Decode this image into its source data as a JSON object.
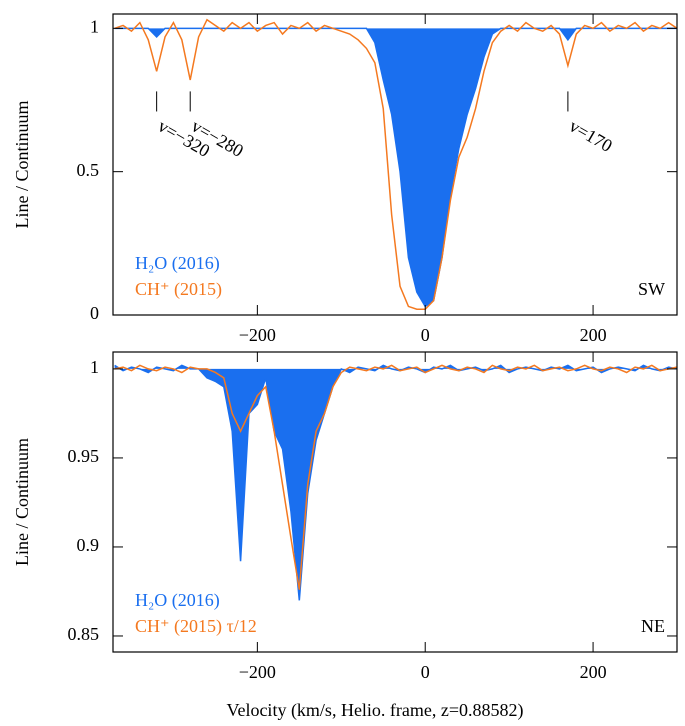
{
  "chart_data": [
    {
      "type": "line",
      "ylabel": "Line / Continuum",
      "panel_label": "SW",
      "xlim": [
        -372,
        300
      ],
      "ylim": [
        0,
        1.05
      ],
      "xticks": [
        {
          "value": -200,
          "label": "−200"
        },
        0,
        200
      ],
      "yticks": [
        0,
        0.5,
        1
      ],
      "x": [
        -370,
        -360,
        -350,
        -340,
        -330,
        -320,
        -310,
        -300,
        -290,
        -280,
        -270,
        -260,
        -250,
        -240,
        -230,
        -220,
        -210,
        -200,
        -190,
        -180,
        -170,
        -160,
        -150,
        -140,
        -130,
        -120,
        -110,
        -100,
        -90,
        -80,
        -70,
        -60,
        -50,
        -40,
        -30,
        -20,
        -10,
        0,
        10,
        20,
        30,
        40,
        50,
        60,
        70,
        80,
        90,
        100,
        110,
        120,
        130,
        140,
        150,
        160,
        170,
        180,
        190,
        200,
        210,
        220,
        230,
        240,
        250,
        260,
        270,
        280,
        290,
        300
      ],
      "series": [
        {
          "name": "H₂O (2016)",
          "color": "#1a6fef",
          "fill_to": 1,
          "values": [
            1,
            1,
            1,
            1,
            1,
            0.97,
            1,
            1,
            1,
            1,
            1,
            1,
            1,
            1,
            1,
            1,
            1,
            1,
            1,
            1,
            1,
            1,
            1,
            1,
            1,
            1,
            1,
            1,
            1,
            1,
            1,
            0.95,
            0.82,
            0.7,
            0.5,
            0.2,
            0.08,
            0.03,
            0.05,
            0.2,
            0.42,
            0.58,
            0.7,
            0.79,
            0.9,
            0.98,
            1,
            1,
            1,
            1,
            1,
            1,
            1,
            1,
            0.96,
            1,
            1,
            1,
            1,
            1,
            1,
            1,
            1,
            1,
            1,
            1,
            1,
            1
          ]
        },
        {
          "name": "CH⁺ (2015)",
          "color": "#f47920",
          "values": [
            1.0,
            1.01,
            0.99,
            1.02,
            0.96,
            0.85,
            0.97,
            1.02,
            0.96,
            0.82,
            0.97,
            1.03,
            1.01,
            0.99,
            1.02,
            1.0,
            1.02,
            0.99,
            1.01,
            1.02,
            0.98,
            1.01,
            1.0,
            1.02,
            0.99,
            1.01,
            1.0,
            0.99,
            0.98,
            0.96,
            0.93,
            0.88,
            0.72,
            0.35,
            0.1,
            0.03,
            0.02,
            0.02,
            0.05,
            0.2,
            0.4,
            0.55,
            0.62,
            0.72,
            0.85,
            0.95,
            0.99,
            1.01,
            0.99,
            1.02,
            1.0,
            0.99,
            1.01,
            0.98,
            0.87,
            0.98,
            1.01,
            1.0,
            1.02,
            0.99,
            1.01,
            1.0,
            1.02,
            0.99,
            1.01,
            1.0,
            1.02,
            1.0
          ]
        }
      ],
      "annotations": [
        {
          "text": "v=−320",
          "x": -320
        },
        {
          "text": "v=−280",
          "x": -280
        },
        {
          "text": "v=170",
          "x": 170
        }
      ]
    },
    {
      "type": "line",
      "ylabel": "Line / Continuum",
      "panel_label": "NE",
      "xlabel": "Velocity (km/s, Helio. frame, z=0.88582)",
      "xlim": [
        -372,
        300
      ],
      "ylim": [
        0.841,
        1.0095
      ],
      "xticks": [
        {
          "value": -200,
          "label": "−200"
        },
        0,
        200
      ],
      "yticks": [
        0.85,
        0.9,
        0.95,
        1
      ],
      "x": [
        -370,
        -360,
        -350,
        -340,
        -330,
        -320,
        -310,
        -300,
        -290,
        -280,
        -270,
        -260,
        -250,
        -240,
        -230,
        -220,
        -210,
        -200,
        -190,
        -180,
        -170,
        -160,
        -150,
        -140,
        -130,
        -120,
        -110,
        -100,
        -90,
        -80,
        -70,
        -60,
        -50,
        -40,
        -30,
        -20,
        -10,
        0,
        10,
        20,
        30,
        40,
        50,
        60,
        70,
        80,
        90,
        100,
        110,
        120,
        130,
        140,
        150,
        160,
        170,
        180,
        190,
        200,
        210,
        220,
        230,
        240,
        250,
        260,
        270,
        280,
        290,
        300
      ],
      "series": [
        {
          "name": "H₂O (2016)",
          "color": "#1a6fef",
          "fill_to": 1,
          "values": [
            1.002,
            0.999,
            1.001,
            1.0,
            0.998,
            1.001,
            1.0,
            0.999,
            1.002,
            1.0,
            1.0,
            0.995,
            0.993,
            0.99,
            0.965,
            0.892,
            0.975,
            0.98,
            0.995,
            0.965,
            0.955,
            0.92,
            0.87,
            0.93,
            0.96,
            0.975,
            0.99,
            1.0,
            0.998,
            1.001,
            1.0,
            0.999,
            1.002,
            1.0,
            0.999,
            1.001,
            1.0,
            0.998,
            1.001,
            1.0,
            1.002,
            0.999,
            1.0,
            1.001,
            0.999,
            1.0,
            1.002,
            0.998,
            1.0,
            1.001,
            1.0,
            0.999,
            1.001,
            1.0,
            1.002,
            0.999,
            1.0,
            1.001,
            0.998,
            1.0,
            1.001,
            1.0,
            0.999,
            1.002,
            1.0,
            0.999,
            1.001,
            1.0
          ]
        },
        {
          "name": "CH⁺ (2015) τ/12",
          "color": "#f47920",
          "values": [
            1.0,
            1.001,
            0.999,
            1.002,
            1.0,
            0.999,
            1.001,
            1.0,
            0.998,
            1.001,
            1.0,
            1.0,
            0.998,
            0.995,
            0.975,
            0.965,
            0.975,
            0.985,
            0.99,
            0.965,
            0.935,
            0.905,
            0.876,
            0.935,
            0.965,
            0.975,
            0.99,
            0.998,
            1.001,
            1.0,
            0.999,
            1.001,
            1.0,
            1.002,
            0.999,
            1.0,
            1.001,
            0.998,
            1.0,
            1.002,
            1.0,
            0.999,
            1.001,
            1.0,
            0.998,
            1.002,
            1.0,
            0.999,
            1.001,
            1.0,
            1.002,
            0.999,
            1.0,
            1.001,
            0.999,
            1.0,
            1.002,
            1.0,
            0.999,
            1.001,
            1.0,
            0.998,
            1.001,
            1.0,
            1.002,
            0.999,
            1.0,
            1.001
          ]
        }
      ]
    }
  ]
}
